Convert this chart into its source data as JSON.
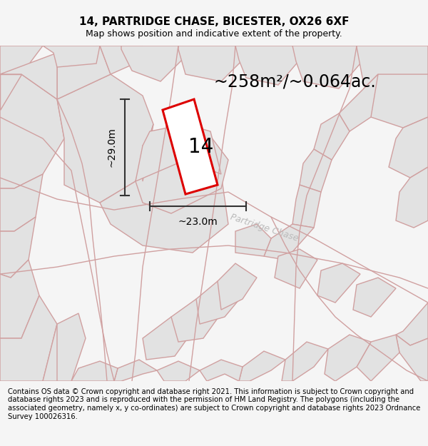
{
  "title": "14, PARTRIDGE CHASE, BICESTER, OX26 6XF",
  "subtitle": "Map shows position and indicative extent of the property.",
  "area_label": "~258m²/~0.064ac.",
  "number_label": "14",
  "width_label": "~23.0m",
  "height_label": "~29.0m",
  "street_label": "Partridge Chase",
  "footer": "Contains OS data © Crown copyright and database right 2021. This information is subject to Crown copyright and database rights 2023 and is reproduced with the permission of HM Land Registry. The polygons (including the associated geometry, namely x, y co-ordinates) are subject to Crown copyright and database rights 2023 Ordnance Survey 100026316.",
  "fig_bg": "#f5f5f5",
  "map_bg": "#f7f7f7",
  "plot_outline_color": "#dd0000",
  "plot_fill_color": "#ffffff",
  "block_fill": "#e2e2e2",
  "block_edge": "#d0a0a0",
  "dim_color": "#333333",
  "street_color": "#bbbbbb",
  "title_fontsize": 11,
  "subtitle_fontsize": 9,
  "area_label_fontsize": 17,
  "number_label_fontsize": 20,
  "dim_label_fontsize": 10,
  "street_label_fontsize": 9,
  "footer_fontsize": 7.2
}
